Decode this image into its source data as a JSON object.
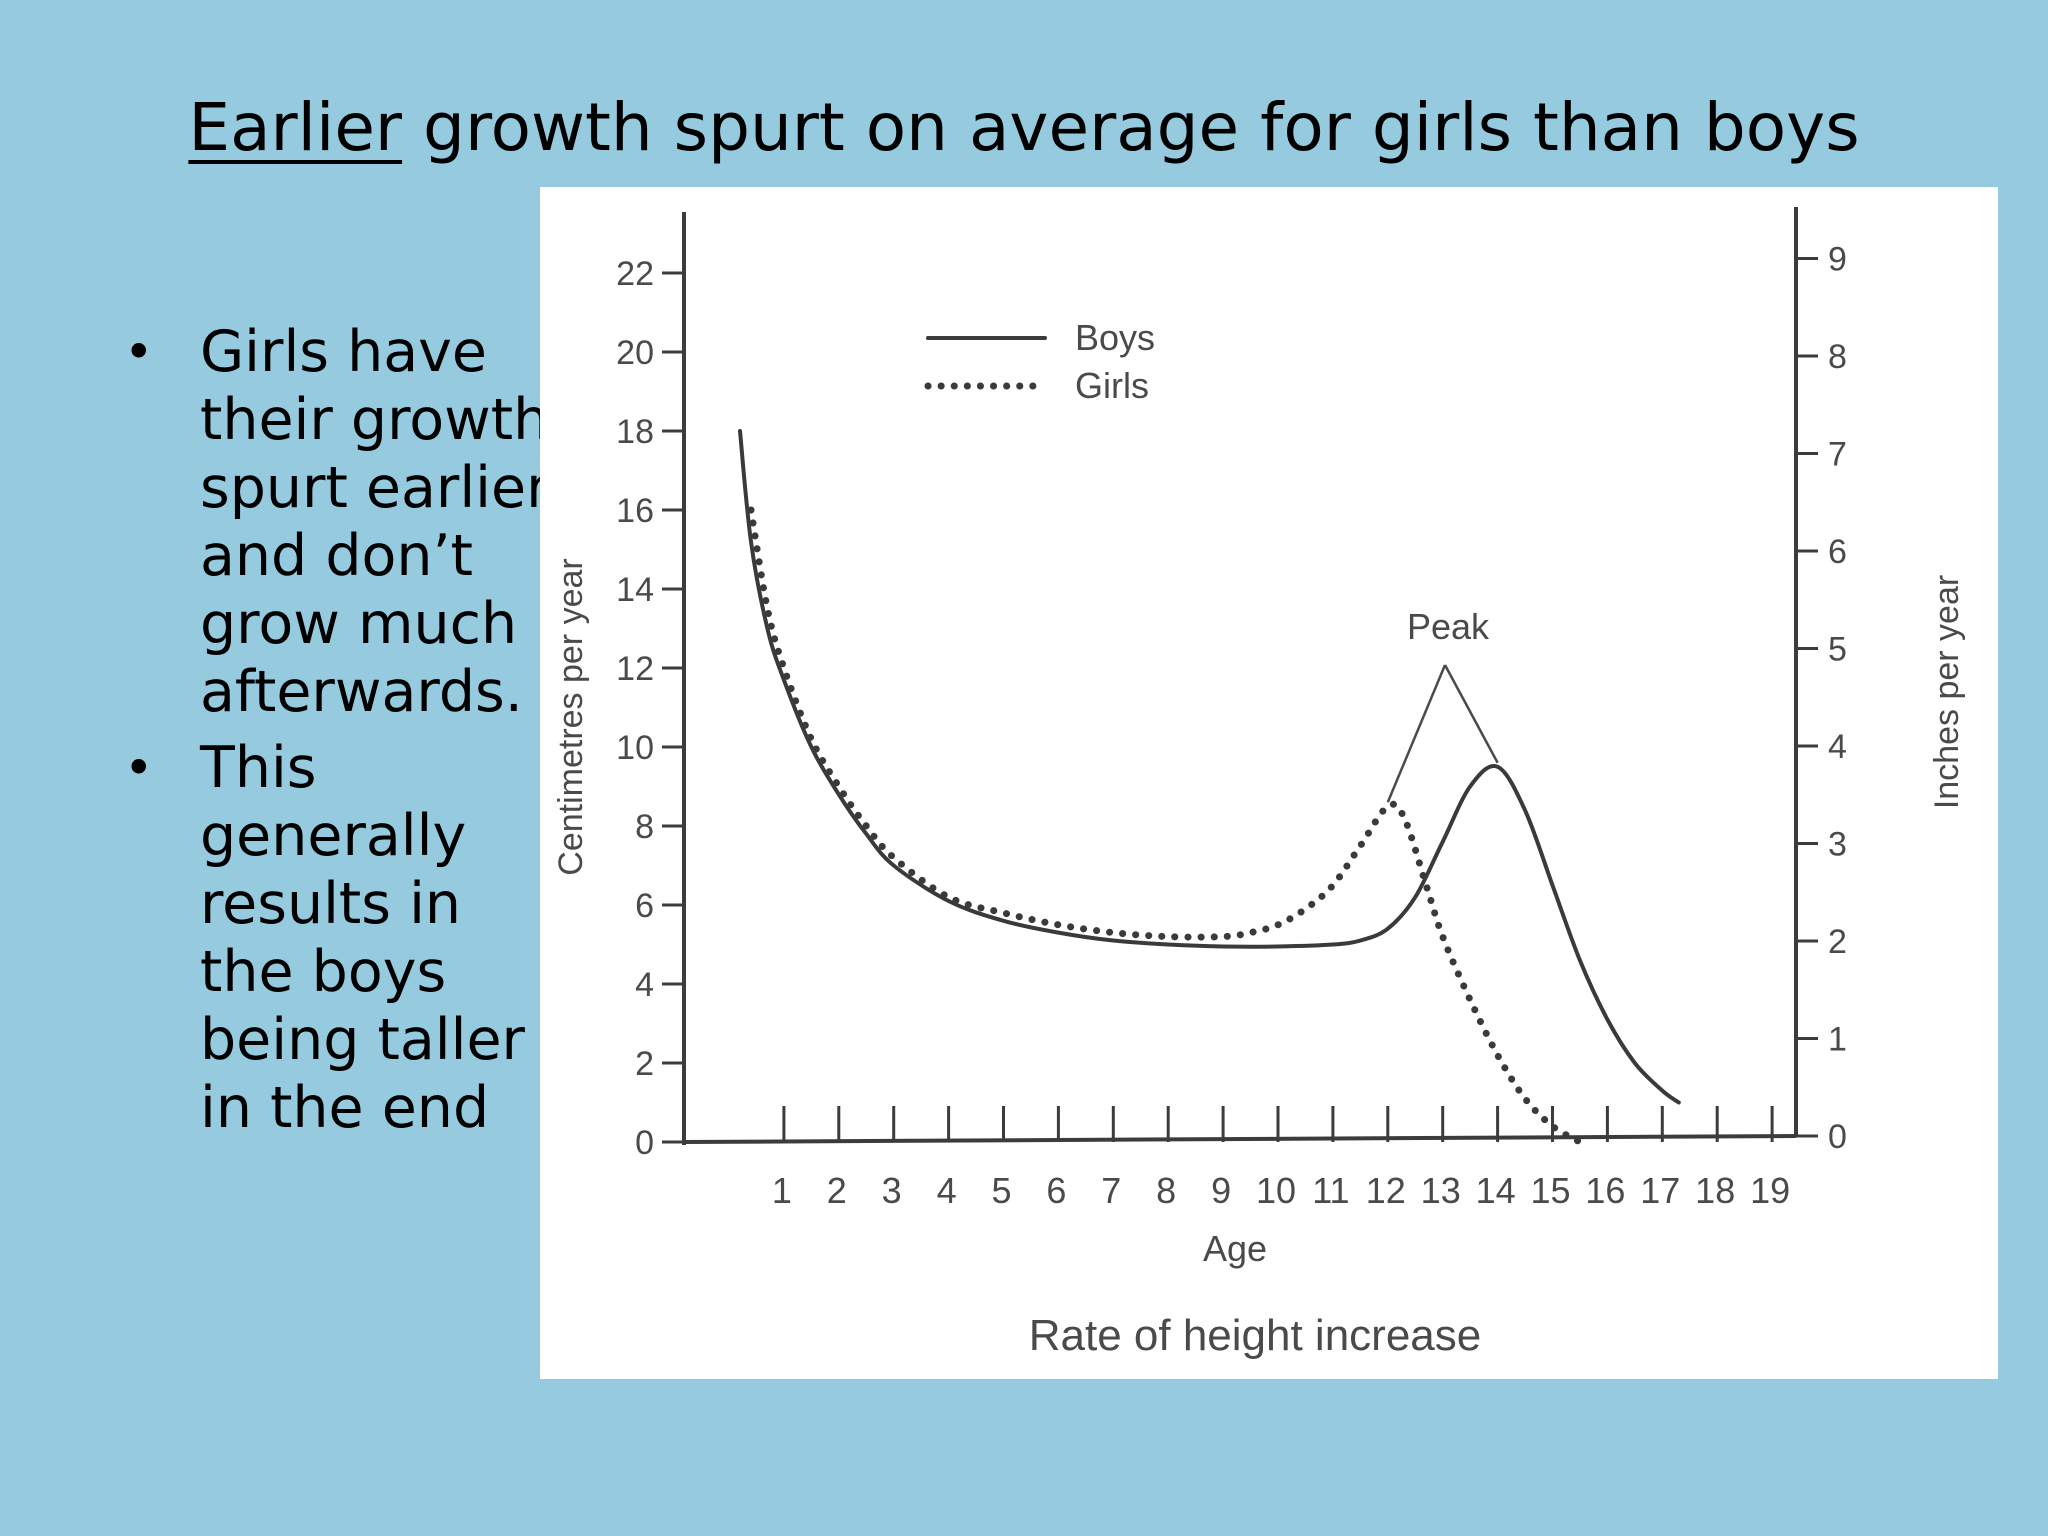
{
  "slide": {
    "title_underlined": "Earlier",
    "title_rest": " growth spurt on average for girls than boys",
    "bullets": [
      "Girls have their growth spurt earlier and don’t grow much afterwards.",
      "This generally results in the boys being taller in the end"
    ],
    "background_color": "#96cbdf"
  },
  "chart_data": {
    "type": "line",
    "title": "Rate of height increase",
    "xlabel": "Age",
    "ylabel": "Centimetres per year",
    "y2label": "Inches per year",
    "xlim": [
      0,
      19
    ],
    "ylim": [
      0,
      23
    ],
    "y2lim": [
      0,
      9
    ],
    "x_ticks": [
      1,
      2,
      3,
      4,
      5,
      6,
      7,
      8,
      9,
      10,
      11,
      12,
      13,
      14,
      15,
      16,
      17,
      18,
      19
    ],
    "y_ticks": [
      0,
      2,
      4,
      6,
      8,
      10,
      12,
      14,
      16,
      18,
      20,
      22
    ],
    "y2_ticks": [
      0,
      1,
      2,
      3,
      4,
      5,
      6,
      7,
      8,
      9
    ],
    "legend_position": "top-left",
    "annotation": {
      "text": "Peak"
    },
    "series": [
      {
        "name": "Boys",
        "style": "solid",
        "x": [
          0.2,
          0.4,
          0.7,
          1,
          1.5,
          2,
          2.5,
          3,
          4,
          5,
          6,
          7,
          8,
          9,
          10,
          11,
          11.5,
          12,
          12.5,
          13,
          13.5,
          14,
          14.5,
          15,
          15.5,
          16,
          16.5,
          17,
          17.3
        ],
        "y": [
          18,
          15.2,
          13,
          11.7,
          10,
          8.8,
          7.8,
          7,
          6.1,
          5.6,
          5.3,
          5.1,
          5,
          4.95,
          4.95,
          5,
          5.1,
          5.4,
          6.2,
          7.6,
          9,
          9.5,
          8.4,
          6.5,
          4.6,
          3.1,
          2,
          1.3,
          1
        ]
      },
      {
        "name": "Girls",
        "style": "dotted",
        "x": [
          0.4,
          0.7,
          1,
          1.5,
          2,
          2.5,
          3,
          4,
          5,
          6,
          7,
          8,
          9,
          9.5,
          10,
          10.5,
          11,
          11.5,
          12,
          12.3,
          12.7,
          13,
          13.5,
          14,
          14.5,
          15,
          15.5
        ],
        "y": [
          16,
          13.5,
          12,
          10.2,
          9,
          8,
          7.2,
          6.2,
          5.8,
          5.5,
          5.3,
          5.2,
          5.2,
          5.3,
          5.5,
          5.9,
          6.5,
          7.5,
          8.5,
          8.2,
          6.5,
          5.2,
          3.6,
          2.2,
          1.1,
          0.4,
          0
        ]
      }
    ]
  }
}
